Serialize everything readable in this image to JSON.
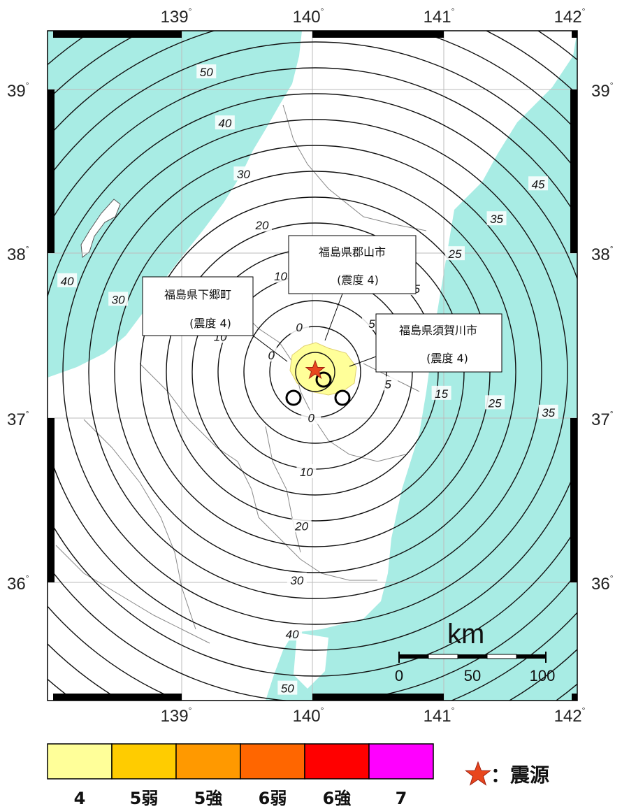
{
  "map": {
    "lon_ticks": [
      "139",
      "140",
      "141",
      "142"
    ],
    "lat_ticks": [
      "39",
      "38",
      "37",
      "36"
    ],
    "degree_symbol": "°",
    "contour_labels": [
      "0",
      "5",
      "10",
      "15",
      "20",
      "25",
      "30",
      "35",
      "40",
      "45",
      "50"
    ],
    "callouts": [
      {
        "name": "福島県郡山市",
        "intensity": "(震度 4)"
      },
      {
        "name": "福島県下郷町",
        "intensity": "(震度 4)"
      },
      {
        "name": "福島県須賀川市",
        "intensity": "(震度 4)"
      }
    ],
    "scale_bar": {
      "unit": "km",
      "labels": [
        "0",
        "50",
        "100"
      ]
    },
    "colors": {
      "sea": "#a8ece4",
      "land": "#ffffff",
      "contour": "#111111",
      "epicenter": "#e8461e",
      "intensity_4_area": "#ffff99"
    }
  },
  "legend": {
    "intensity_scale": [
      {
        "label": "4",
        "color": "#ffff99"
      },
      {
        "label": "5弱",
        "color": "#ffcc00"
      },
      {
        "label": "5強",
        "color": "#ff9900"
      },
      {
        "label": "6弱",
        "color": "#ff6600"
      },
      {
        "label": "6強",
        "color": "#ff0000"
      },
      {
        "label": "7",
        "color": "#ff00ff"
      }
    ],
    "epicenter_icon": "star-icon",
    "epicenter_label": "：震源"
  }
}
